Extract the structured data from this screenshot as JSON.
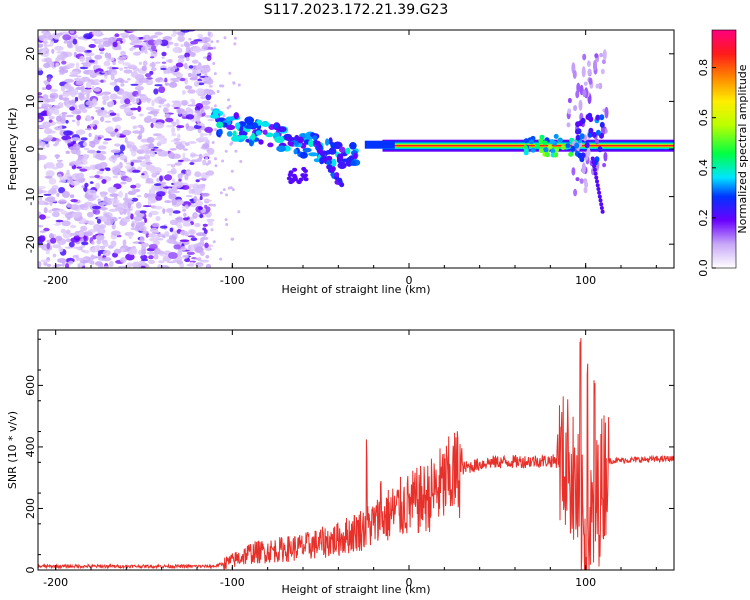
{
  "title": "S117.2023.172.21.39.G23",
  "chart_data": [
    {
      "type": "heatmap",
      "xlabel": "Height of straight line (km)",
      "ylabel": "Frequency (Hz)",
      "xlim": [
        -210,
        150
      ],
      "ylim": [
        -25,
        25
      ],
      "xticks": [
        -200,
        -100,
        0,
        100
      ],
      "yticks": [
        -20,
        -10,
        0,
        10,
        20
      ],
      "colorbar": {
        "label": "Normalized spectral amplitude",
        "range": [
          0,
          0.95
        ],
        "ticks": [
          "0.0",
          "0.2",
          "0.4",
          "0.6",
          "0.8"
        ],
        "tick_values": [
          0,
          0.2,
          0.4,
          0.6,
          0.8
        ]
      },
      "features": [
        {
          "name": "noise",
          "x": [
            -210,
            -112
          ],
          "y": [
            -25,
            25
          ],
          "amplitude": 0.1
        },
        {
          "name": "carrier",
          "x": [
            -15,
            150
          ],
          "y_center": 0.7,
          "amplitude": 0.95
        },
        {
          "name": "descending-streak",
          "x": [
            -112,
            -30
          ],
          "y_from": 6,
          "y_to": -2,
          "amplitude": 0.35
        },
        {
          "name": "branch",
          "x": [
            -55,
            -38
          ],
          "y_from": 3,
          "y_to": -8,
          "amplitude": 0.3
        },
        {
          "name": "disturbance",
          "x": [
            90,
            112
          ],
          "y": [
            -14,
            22
          ],
          "amplitude": 0.2
        }
      ]
    },
    {
      "type": "line",
      "xlabel": "Height of straight line (km)",
      "ylabel": "SNR (10 * v/v)",
      "xlim": [
        -210,
        150
      ],
      "ylim": [
        0,
        780
      ],
      "xticks": [
        -200,
        -100,
        0,
        100
      ],
      "yticks": [
        0,
        200,
        400,
        600
      ],
      "color": "#e8302a",
      "profile": [
        {
          "x": -210,
          "y": 12
        },
        {
          "x": -110,
          "y": 12
        },
        {
          "x": -100,
          "y": 30
        },
        {
          "x": -90,
          "y": 55
        },
        {
          "x": -60,
          "y": 75
        },
        {
          "x": -40,
          "y": 100
        },
        {
          "x": -20,
          "y": 150
        },
        {
          "x": -5,
          "y": 200
        },
        {
          "x": 10,
          "y": 235
        },
        {
          "x": 20,
          "y": 280
        },
        {
          "x": 30,
          "y": 330
        },
        {
          "x": 45,
          "y": 350
        },
        {
          "x": 80,
          "y": 355
        },
        {
          "x": 90,
          "y": 350
        },
        {
          "x": 96,
          "y": 220
        },
        {
          "x": 100,
          "y": 80
        },
        {
          "x": 108,
          "y": 250
        },
        {
          "x": 112,
          "y": 355
        },
        {
          "x": 150,
          "y": 362
        }
      ],
      "spikes": [
        {
          "x": -24,
          "y": 430
        },
        {
          "x": -16,
          "y": 300
        },
        {
          "x": 84,
          "y": 450
        },
        {
          "x": 90,
          "y": 560
        },
        {
          "x": 97,
          "y": 780
        },
        {
          "x": 101,
          "y": 780
        },
        {
          "x": 105,
          "y": 650
        }
      ]
    }
  ]
}
